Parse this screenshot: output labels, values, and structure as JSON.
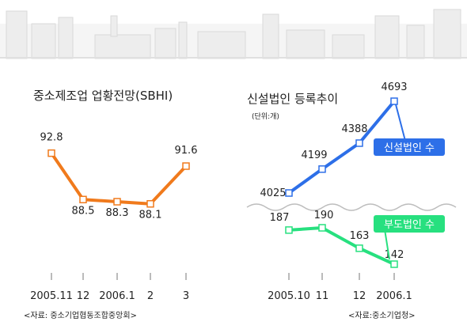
{
  "chart_data": [
    {
      "type": "line",
      "title": "중소제조업 업황전망(SBHI)",
      "categories": [
        "2005.11",
        "12",
        "2006.1",
        "2",
        "3"
      ],
      "series": [
        {
          "values": [
            92.8,
            88.5,
            88.3,
            88.1,
            91.6
          ],
          "color": "#f07a1c"
        }
      ],
      "ylim": [
        85,
        96
      ],
      "grid": false,
      "source": "<자료: 중소기업협동조합중앙회>"
    },
    {
      "type": "line",
      "title": "신설법인 등록추이",
      "unit": "(단위:개)",
      "categories": [
        "2005.10",
        "11",
        "12",
        "2006.1"
      ],
      "series": [
        {
          "name": "신설법인 수",
          "values": [
            4025,
            4199,
            4388,
            4693
          ],
          "color": "#2d6fe8"
        },
        {
          "name": "부도법인 수",
          "values": [
            187,
            190,
            163,
            142
          ],
          "color": "#27e07f"
        }
      ],
      "grid": false,
      "source": "<자료:중소기업청>"
    }
  ]
}
